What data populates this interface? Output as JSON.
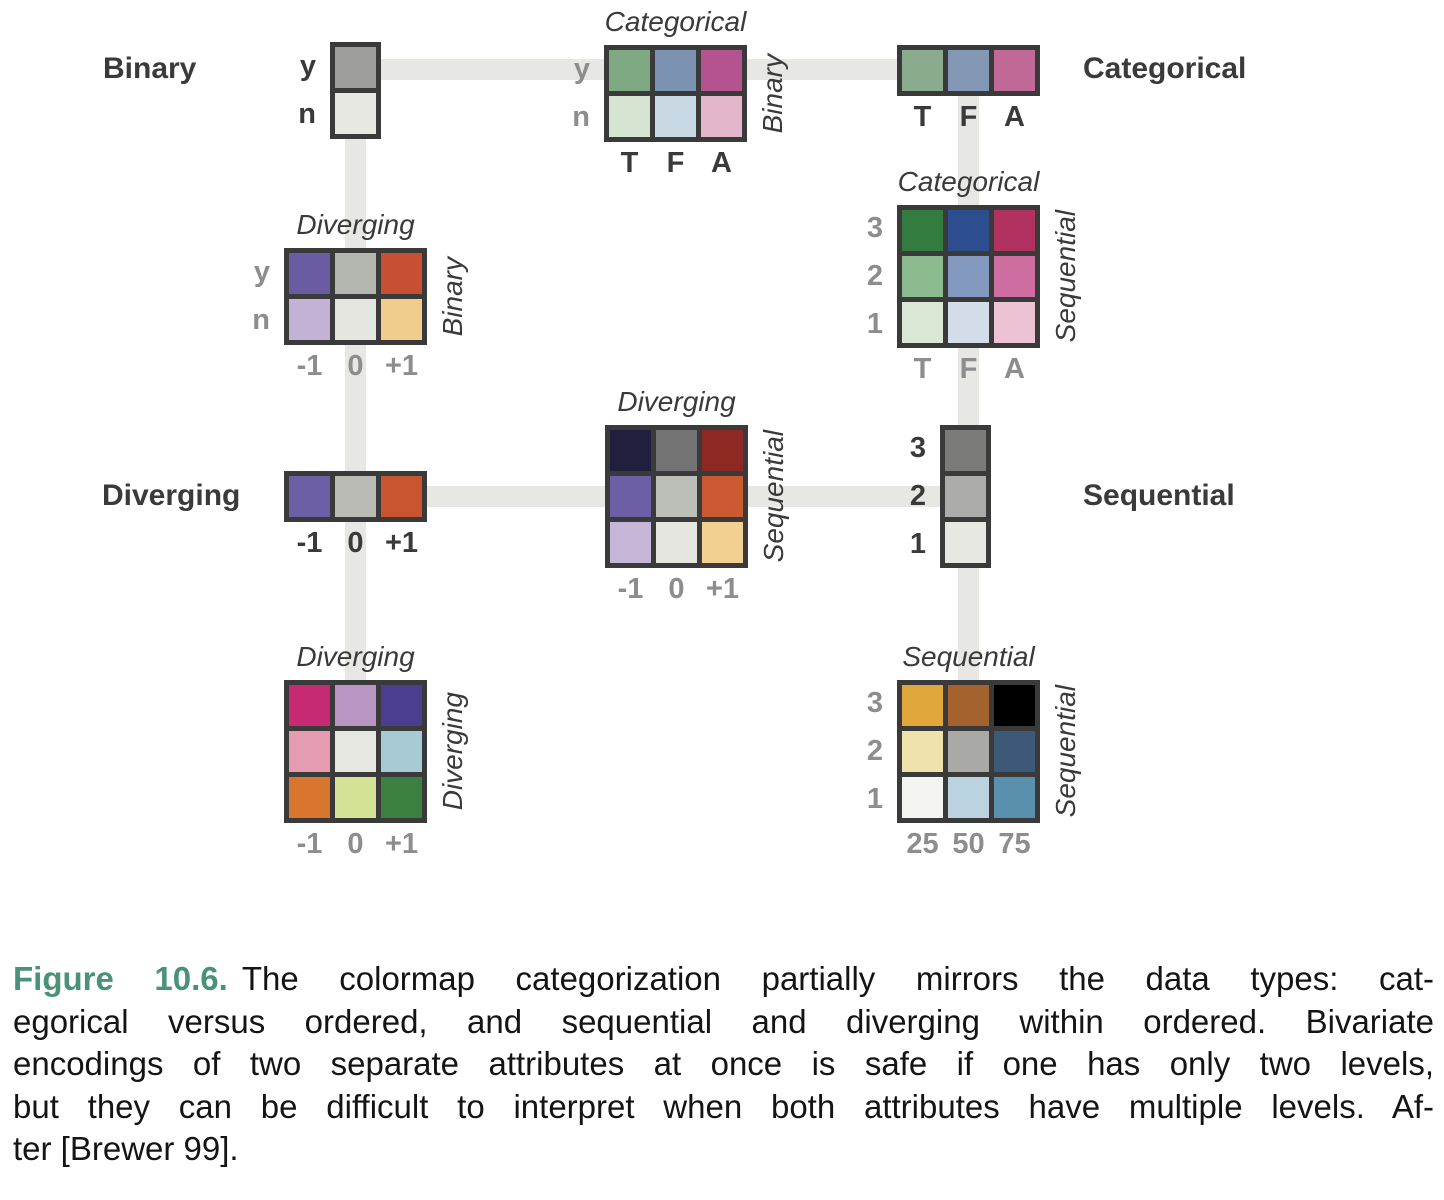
{
  "palette": {
    "accent_green": "#4a9277",
    "border": "#3a3a3a",
    "connector": "#e7e7e4",
    "text_dark": "#3a3a3a",
    "text_gray": "#8d8d8d"
  },
  "labels": {
    "binary": "Binary",
    "categorical": "Categorical",
    "diverging": "Diverging",
    "sequential": "Sequential"
  },
  "units": {
    "binary_single": {
      "cells": [
        [
          "#9e9e9c"
        ],
        [
          "#e8e8e3"
        ]
      ],
      "row_labels": {
        "style": "dark",
        "items": [
          "y",
          "n"
        ]
      }
    },
    "categorical_by_binary": {
      "title": "Categorical",
      "side_label": "Binary",
      "cells": [
        [
          "#7fa983",
          "#7b92b1",
          "#b4538d"
        ],
        [
          "#d5e5d2",
          "#c8d8e4",
          "#e3b6cc"
        ]
      ],
      "row_labels": {
        "style": "gray",
        "items": [
          "y",
          "n"
        ]
      },
      "col_labels": {
        "style": "dark",
        "items": [
          "T",
          "F",
          "A"
        ]
      }
    },
    "categorical_single": {
      "cells": [
        [
          "#8aab8d",
          "#8398b4",
          "#c06896"
        ]
      ],
      "col_labels": {
        "style": "dark",
        "items": [
          "T",
          "F",
          "A"
        ]
      }
    },
    "categorical_by_sequential": {
      "title": "Categorical",
      "side_label": "Sequential",
      "cells": [
        [
          "#337b3f",
          "#2c4d8e",
          "#b13261"
        ],
        [
          "#8cbb90",
          "#8499c0",
          "#ce6da0"
        ],
        [
          "#d8e8d5",
          "#d3dde9",
          "#ebc3d5"
        ]
      ],
      "row_labels": {
        "style": "gray",
        "items": [
          "3",
          "2",
          "1"
        ]
      },
      "col_labels": {
        "style": "gray",
        "items": [
          "T",
          "F",
          "A"
        ]
      }
    },
    "diverging_by_binary": {
      "title": "Diverging",
      "side_label": "Binary",
      "cells": [
        [
          "#6a5ba3",
          "#b4b6b0",
          "#c74f32"
        ],
        [
          "#c2b2d5",
          "#e6e6e1",
          "#f1cc8c"
        ]
      ],
      "row_labels": {
        "style": "gray",
        "items": [
          "y",
          "n"
        ]
      },
      "col_labels": {
        "style": "gray",
        "items": [
          "-1",
          "0",
          "+1"
        ]
      }
    },
    "diverging_single": {
      "cells": [
        [
          "#6d5fa5",
          "#b8bab3",
          "#c8552f"
        ]
      ],
      "col_labels": {
        "style": "dark",
        "items": [
          "-1",
          "0",
          "+1"
        ]
      }
    },
    "diverging_by_sequential": {
      "title": "Diverging",
      "side_label": "Sequential",
      "cells": [
        [
          "#201f3e",
          "#737373",
          "#8d2823"
        ],
        [
          "#6d5fa5",
          "#bcbeb8",
          "#cb5a32"
        ],
        [
          "#c5b5d7",
          "#e6e6e1",
          "#f1d092"
        ]
      ],
      "col_labels": {
        "style": "gray",
        "items": [
          "-1",
          "0",
          "+1"
        ]
      }
    },
    "sequential_single": {
      "cells": [
        [
          "#7b7b79"
        ],
        [
          "#acacaa"
        ],
        [
          "#e8e8e3"
        ]
      ],
      "row_labels": {
        "style": "dark",
        "items": [
          "3",
          "2",
          "1"
        ]
      }
    },
    "diverging_by_diverging": {
      "title": "Diverging",
      "side_label": "Diverging",
      "cells": [
        [
          "#c62a72",
          "#b995c3",
          "#4b3e8e"
        ],
        [
          "#e59cb1",
          "#e7e7e1",
          "#a7cad4"
        ],
        [
          "#d8752f",
          "#d3e295",
          "#3b7f41"
        ]
      ],
      "col_labels": {
        "style": "gray",
        "items": [
          "-1",
          "0",
          "+1"
        ]
      }
    },
    "sequential_by_sequential": {
      "title": "Sequential",
      "side_label": "Sequential",
      "cells": [
        [
          "#dfa73c",
          "#a4622e",
          "#000000"
        ],
        [
          "#efe2ad",
          "#a9a9a5",
          "#3d5977"
        ],
        [
          "#f4f4f1",
          "#bbd3df",
          "#5a8fad"
        ]
      ],
      "row_labels": {
        "style": "gray",
        "items": [
          "3",
          "2",
          "1"
        ]
      },
      "col_labels": {
        "style": "gray",
        "items": [
          "25",
          "50",
          "75"
        ]
      }
    }
  },
  "caption": {
    "label": "Figure 10.6.",
    "lines": [
      "The colormap categorization partially mirrors the data types: cat-",
      "egorical versus ordered, and sequential and diverging within ordered.  Bivariate",
      "encodings of two separate attributes at once is safe if one has only two levels,",
      "but they can be difficult to interpret when both attributes have multiple levels.  Af-",
      "ter [Brewer 99]."
    ]
  }
}
